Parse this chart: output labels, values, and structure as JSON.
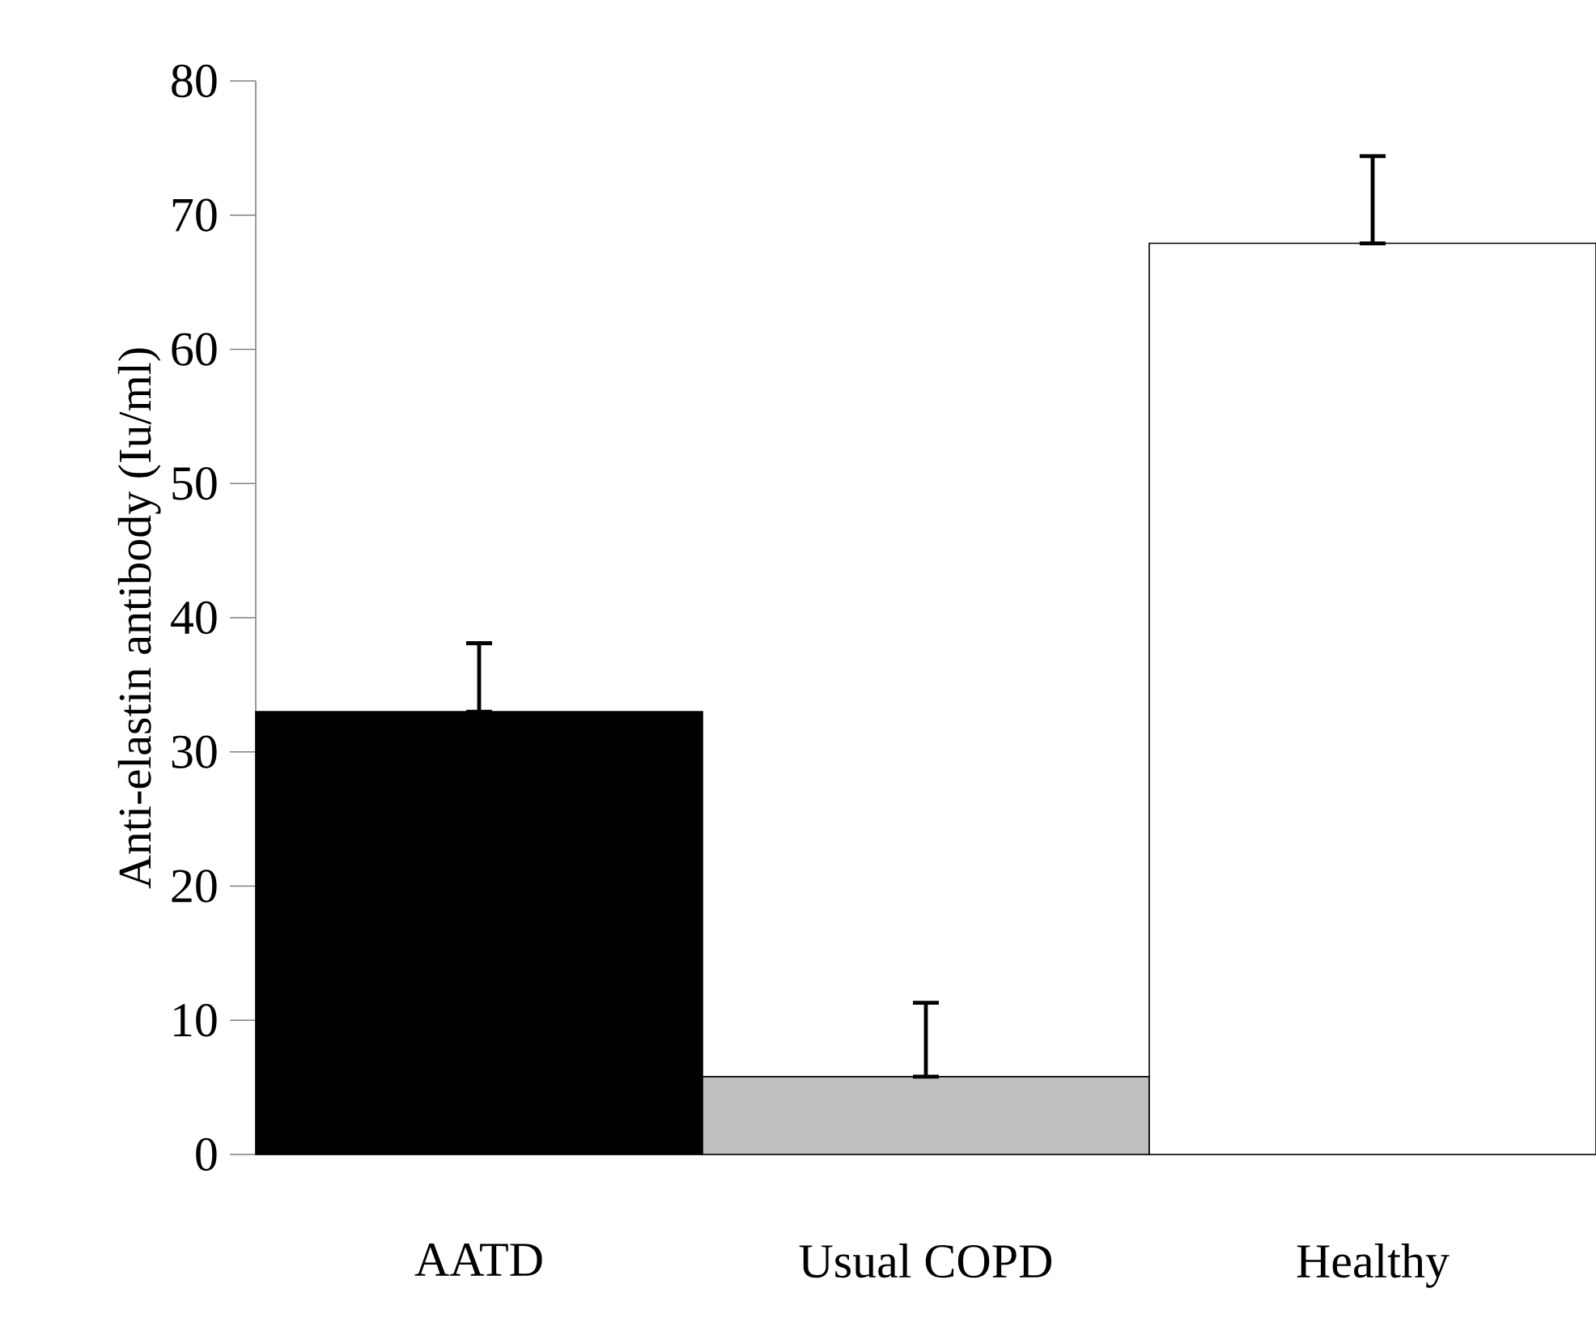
{
  "chart_data": {
    "type": "bar",
    "ylabel": "Anti-elastin antibody (Iu/ml)",
    "categories": [
      "AATD",
      "Usual COPD",
      "Healthy"
    ],
    "values": [
      33.0,
      5.8,
      67.9
    ],
    "colors": [
      "#000000",
      "#bfbfbf",
      "#ffffff"
    ],
    "errors": [
      [
        33.0,
        38.1
      ],
      [
        5.8,
        11.3
      ],
      [
        67.9,
        74.4
      ]
    ],
    "ylim": [
      0,
      80
    ],
    "yticks": [
      0,
      10,
      20,
      30,
      40,
      50,
      60,
      70,
      80
    ],
    "grid": false
  }
}
